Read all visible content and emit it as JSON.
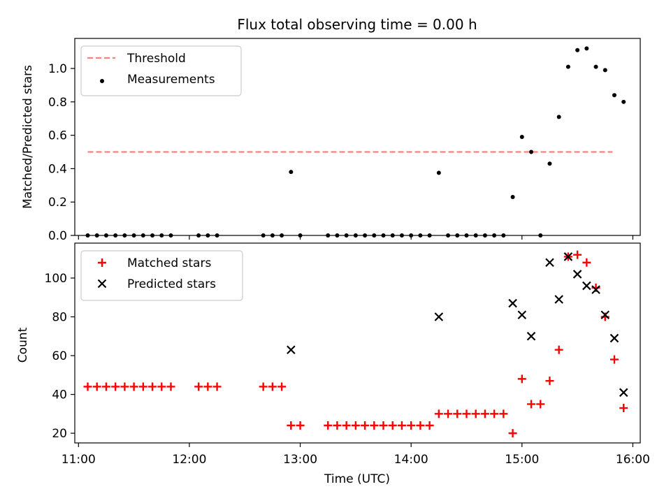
{
  "chart_data": [
    {
      "type": "scatter",
      "title": "Flux total observing time = 0.00 h",
      "xlabel": "",
      "ylabel": "Matched/Predicted stars",
      "xlim": [
        "10:58",
        "16:04"
      ],
      "ylim": [
        0,
        1.18
      ],
      "yticks": [
        0.0,
        0.2,
        0.4,
        0.6,
        0.8,
        1.0
      ],
      "ytick_labels": [
        "0.0",
        "0.2",
        "0.4",
        "0.6",
        "0.8",
        "1.0"
      ],
      "legend_position": "upper-left",
      "threshold": {
        "name": "Threshold",
        "value": 0.5,
        "x_start": "11:05",
        "x_end": "15:49",
        "color": "#ff7f7f",
        "style": "dashed"
      },
      "series": [
        {
          "name": "Measurements",
          "color": "#000000",
          "marker": "dot",
          "points": [
            [
              "11:05",
              0
            ],
            [
              "11:10",
              0
            ],
            [
              "11:15",
              0
            ],
            [
              "11:20",
              0
            ],
            [
              "11:25",
              0
            ],
            [
              "11:30",
              0
            ],
            [
              "11:35",
              0
            ],
            [
              "11:40",
              0
            ],
            [
              "11:45",
              0
            ],
            [
              "11:50",
              0
            ],
            [
              "12:05",
              0
            ],
            [
              "12:10",
              0
            ],
            [
              "12:15",
              0
            ],
            [
              "12:40",
              0
            ],
            [
              "12:45",
              0
            ],
            [
              "12:50",
              0
            ],
            [
              "12:55",
              0.38
            ],
            [
              "13:00",
              0
            ],
            [
              "13:15",
              0
            ],
            [
              "13:20",
              0
            ],
            [
              "13:25",
              0
            ],
            [
              "13:30",
              0
            ],
            [
              "13:35",
              0
            ],
            [
              "13:40",
              0
            ],
            [
              "13:45",
              0
            ],
            [
              "13:50",
              0
            ],
            [
              "13:55",
              0
            ],
            [
              "14:00",
              0
            ],
            [
              "14:05",
              0
            ],
            [
              "14:10",
              0
            ],
            [
              "14:15",
              0.375
            ],
            [
              "14:20",
              0
            ],
            [
              "14:25",
              0
            ],
            [
              "14:30",
              0
            ],
            [
              "14:35",
              0
            ],
            [
              "14:40",
              0
            ],
            [
              "14:45",
              0
            ],
            [
              "14:50",
              0
            ],
            [
              "14:55",
              0.23
            ],
            [
              "15:00",
              0.59
            ],
            [
              "15:05",
              0.5
            ],
            [
              "15:10",
              0
            ],
            [
              "15:15",
              0.43
            ],
            [
              "15:20",
              0.71
            ],
            [
              "15:25",
              1.01
            ],
            [
              "15:30",
              1.11
            ],
            [
              "15:35",
              1.12
            ],
            [
              "15:40",
              1.01
            ],
            [
              "15:45",
              0.99
            ],
            [
              "15:50",
              0.84
            ],
            [
              "15:55",
              0.8
            ]
          ]
        }
      ]
    },
    {
      "type": "scatter",
      "title": "",
      "xlabel": "Time (UTC)",
      "ylabel": "Count",
      "xlim": [
        "10:58",
        "16:04"
      ],
      "xticks": [
        "11:00",
        "12:00",
        "13:00",
        "14:00",
        "15:00",
        "16:00"
      ],
      "ylim": [
        15,
        118
      ],
      "yticks": [
        20,
        40,
        60,
        80,
        100
      ],
      "ytick_labels": [
        "20",
        "40",
        "60",
        "80",
        "100"
      ],
      "legend_position": "upper-left",
      "series": [
        {
          "name": "Matched stars",
          "color": "#ff0000",
          "marker": "plus",
          "points": [
            [
              "11:05",
              44
            ],
            [
              "11:10",
              44
            ],
            [
              "11:15",
              44
            ],
            [
              "11:20",
              44
            ],
            [
              "11:25",
              44
            ],
            [
              "11:30",
              44
            ],
            [
              "11:35",
              44
            ],
            [
              "11:40",
              44
            ],
            [
              "11:45",
              44
            ],
            [
              "11:50",
              44
            ],
            [
              "12:05",
              44
            ],
            [
              "12:10",
              44
            ],
            [
              "12:15",
              44
            ],
            [
              "12:40",
              44
            ],
            [
              "12:45",
              44
            ],
            [
              "12:50",
              44
            ],
            [
              "12:55",
              24
            ],
            [
              "13:00",
              24
            ],
            [
              "13:15",
              24
            ],
            [
              "13:20",
              24
            ],
            [
              "13:25",
              24
            ],
            [
              "13:30",
              24
            ],
            [
              "13:35",
              24
            ],
            [
              "13:40",
              24
            ],
            [
              "13:45",
              24
            ],
            [
              "13:50",
              24
            ],
            [
              "13:55",
              24
            ],
            [
              "14:00",
              24
            ],
            [
              "14:05",
              24
            ],
            [
              "14:10",
              24
            ],
            [
              "14:15",
              30
            ],
            [
              "14:20",
              30
            ],
            [
              "14:25",
              30
            ],
            [
              "14:30",
              30
            ],
            [
              "14:35",
              30
            ],
            [
              "14:40",
              30
            ],
            [
              "14:45",
              30
            ],
            [
              "14:50",
              30
            ],
            [
              "14:55",
              20
            ],
            [
              "15:00",
              48
            ],
            [
              "15:05",
              35
            ],
            [
              "15:10",
              35
            ],
            [
              "15:15",
              47
            ],
            [
              "15:20",
              63
            ],
            [
              "15:25",
              111
            ],
            [
              "15:30",
              112
            ],
            [
              "15:35",
              108
            ],
            [
              "15:40",
              95
            ],
            [
              "15:45",
              80
            ],
            [
              "15:50",
              58
            ],
            [
              "15:55",
              33
            ]
          ]
        },
        {
          "name": "Predicted stars",
          "color": "#000000",
          "marker": "x",
          "points": [
            [
              "12:55",
              63
            ],
            [
              "14:15",
              80
            ],
            [
              "14:55",
              87
            ],
            [
              "15:00",
              81
            ],
            [
              "15:05",
              70
            ],
            [
              "15:15",
              108
            ],
            [
              "15:20",
              89
            ],
            [
              "15:25",
              111
            ],
            [
              "15:30",
              102
            ],
            [
              "15:35",
              96
            ],
            [
              "15:40",
              94
            ],
            [
              "15:45",
              81
            ],
            [
              "15:50",
              69
            ],
            [
              "15:55",
              41
            ]
          ]
        }
      ]
    }
  ]
}
